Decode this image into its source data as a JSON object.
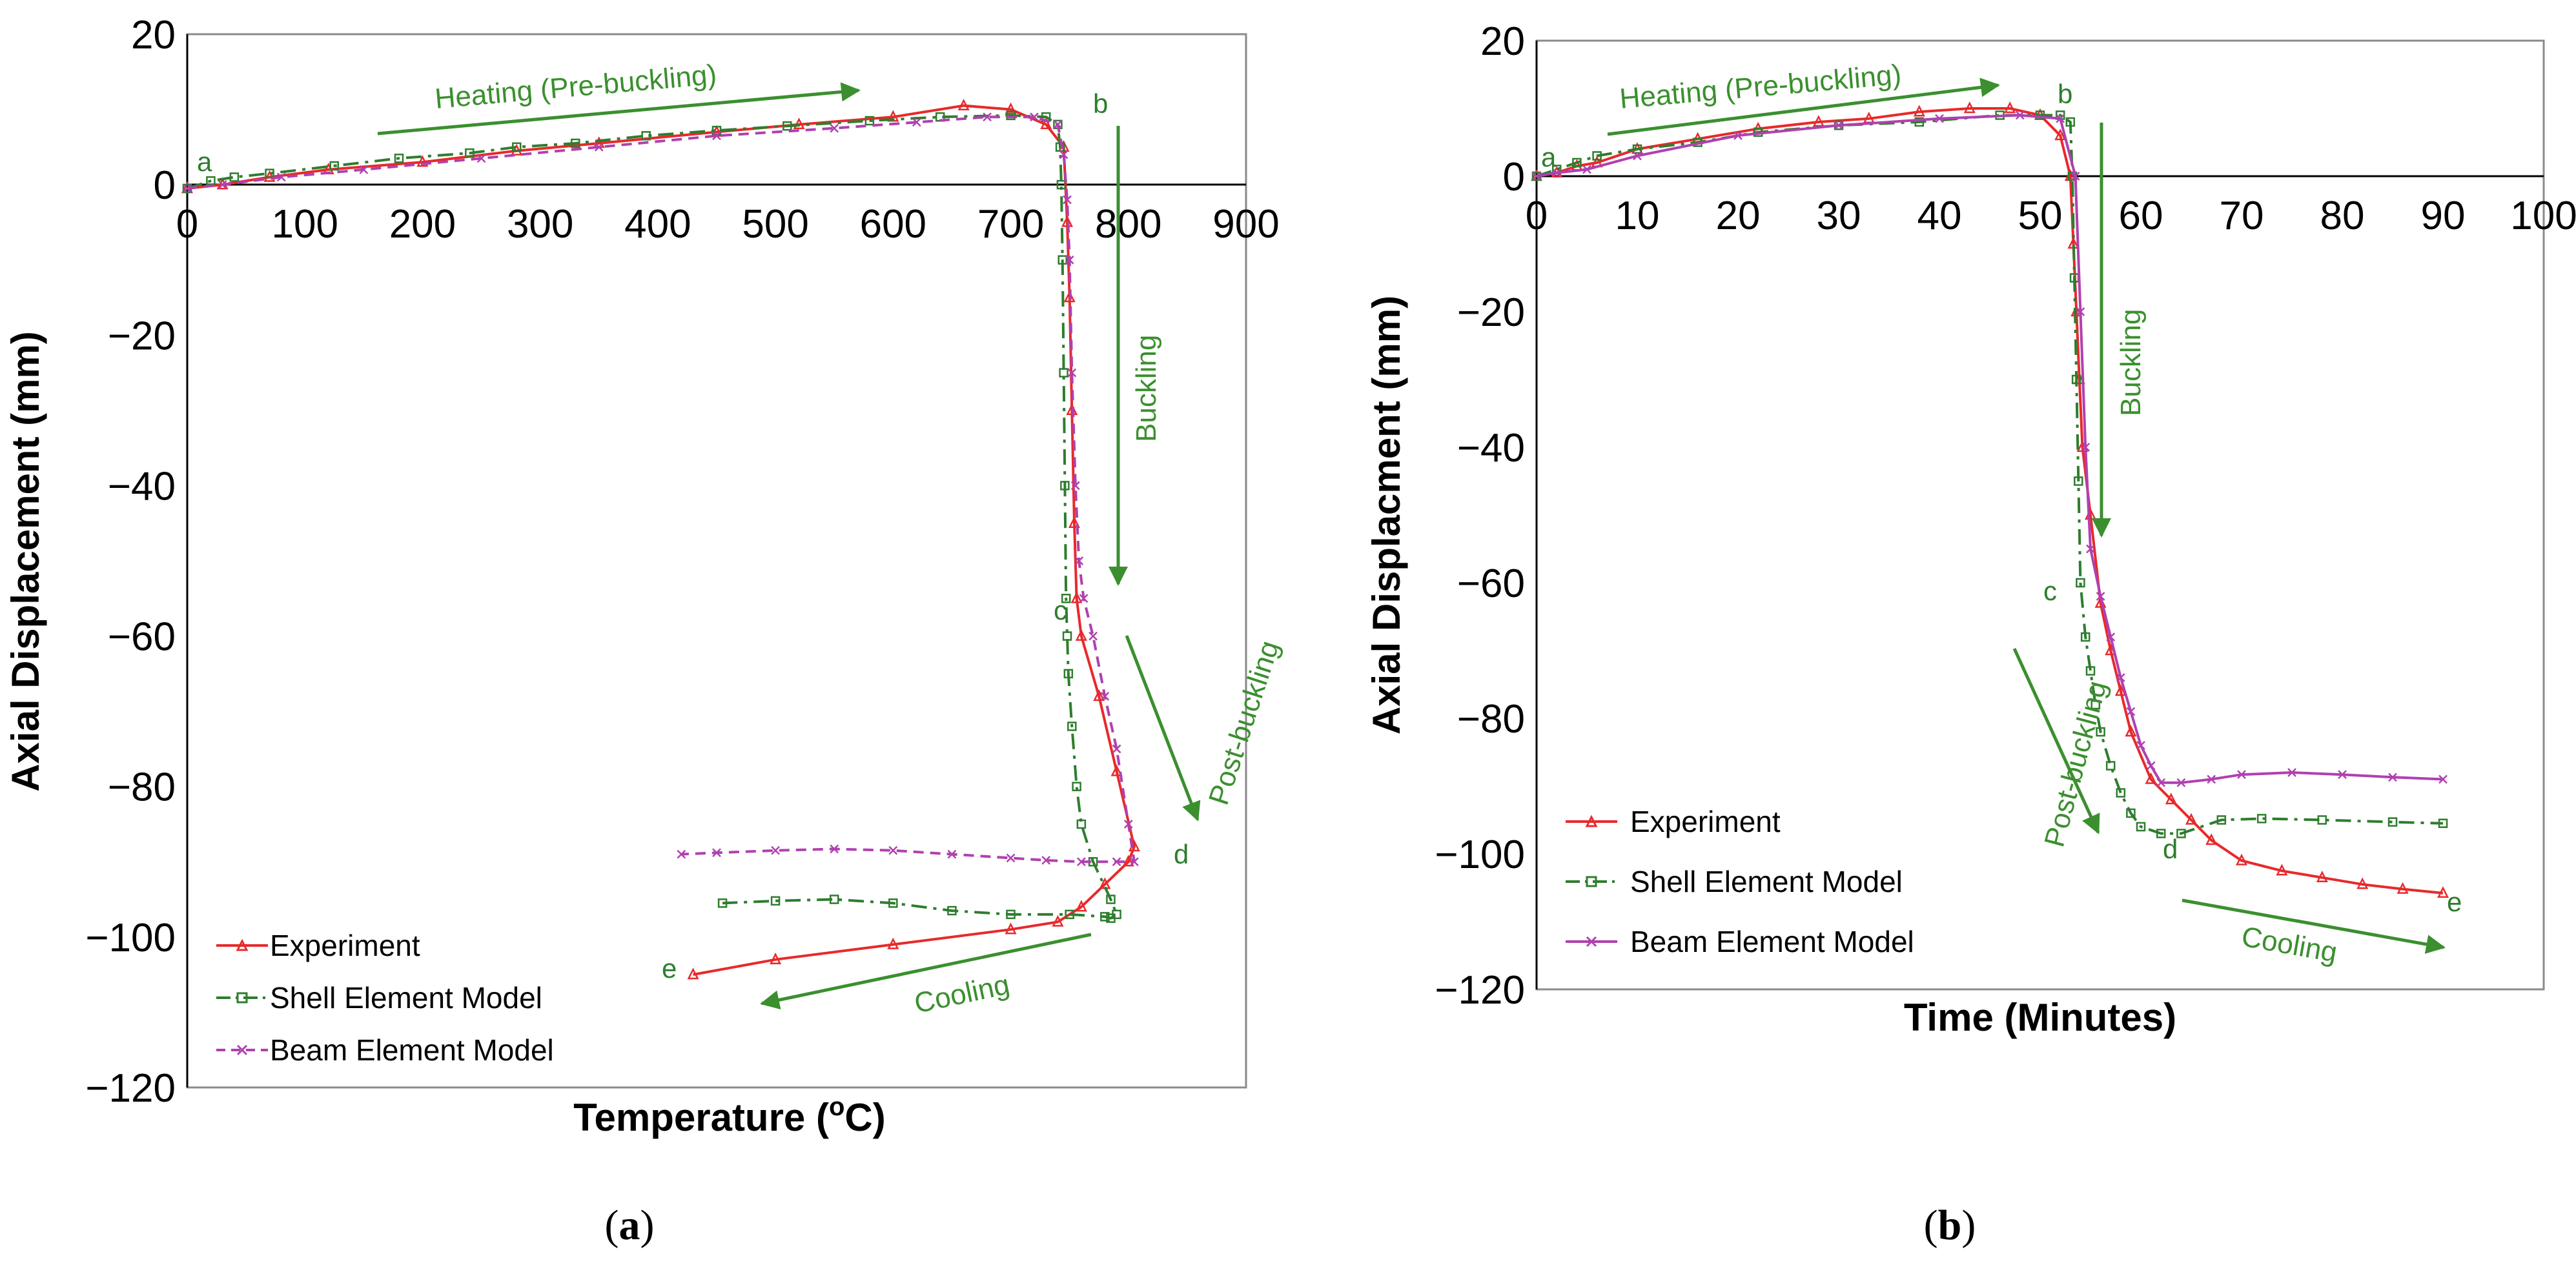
{
  "chart_data": [
    {
      "type": "line",
      "panel_label": "a",
      "xlabel_main": "Temperature (",
      "xlabel_sup": "o",
      "xlabel_end": "C)",
      "ylabel": "Axial Displacement (mm)",
      "xlim": [
        0,
        900
      ],
      "ylim": [
        -120,
        20
      ],
      "xticks": [
        "0",
        "100",
        "200",
        "300",
        "400",
        "500",
        "600",
        "700",
        "800",
        "900"
      ],
      "yticks": [
        "20",
        "0",
        "−20",
        "−40",
        "−60",
        "−80",
        "−100",
        "−120"
      ],
      "series": [
        {
          "name": "Experiment",
          "color": "#e8292b",
          "marker": "triangle",
          "dash": "solid",
          "x": [
            0,
            30,
            70,
            120,
            200,
            280,
            350,
            450,
            520,
            600,
            660,
            700,
            730,
            745,
            748,
            750,
            752,
            754,
            756,
            760,
            775,
            790,
            805,
            800,
            780,
            760,
            740,
            700,
            600,
            500,
            430
          ],
          "y": [
            -0.5,
            0,
            1,
            2,
            3,
            4.5,
            5.5,
            7,
            8,
            9,
            10.5,
            10,
            8,
            5,
            -5,
            -15,
            -30,
            -45,
            -55,
            -60,
            -68,
            -78,
            -88,
            -90,
            -93,
            -96,
            -98,
            -99,
            -101,
            -103,
            -105
          ]
        },
        {
          "name": "Shell Element Model",
          "color": "#2e7d2e",
          "marker": "square",
          "dash": "dashdot",
          "x": [
            0,
            20,
            40,
            70,
            125,
            180,
            240,
            280,
            330,
            390,
            450,
            510,
            580,
            640,
            700,
            730,
            740,
            742,
            743,
            744,
            745,
            746,
            747,
            748,
            749,
            752,
            756,
            760,
            770,
            785,
            790,
            785,
            780,
            750,
            700,
            650,
            600,
            550,
            500,
            455
          ],
          "y": [
            -0.5,
            0.5,
            1,
            1.5,
            2.5,
            3.5,
            4.2,
            5,
            5.5,
            6.5,
            7.2,
            7.8,
            8.5,
            9,
            9.2,
            9,
            8,
            5,
            0,
            -10,
            -25,
            -40,
            -55,
            -60,
            -65,
            -72,
            -80,
            -85,
            -90,
            -95,
            -97,
            -97.5,
            -97.3,
            -97,
            -97,
            -96.5,
            -95.5,
            -95,
            -95.2,
            -95.5
          ]
        },
        {
          "name": "Beam Element Model",
          "color": "#b040b0",
          "marker": "x",
          "dash": "dashed",
          "x": [
            0,
            30,
            80,
            150,
            250,
            350,
            450,
            550,
            620,
            680,
            720,
            740,
            745,
            748,
            750,
            752,
            755,
            758,
            762,
            770,
            780,
            790,
            800,
            805,
            790,
            760,
            730,
            700,
            650,
            600,
            550,
            500,
            450,
            420
          ],
          "y": [
            -0.5,
            0,
            1,
            2,
            3.5,
            5,
            6.5,
            7.5,
            8.3,
            9,
            9,
            8,
            4,
            -2,
            -10,
            -25,
            -40,
            -50,
            -55,
            -60,
            -68,
            -75,
            -85,
            -90,
            -90,
            -90,
            -89.8,
            -89.5,
            -89,
            -88.5,
            -88.3,
            -88.5,
            -88.8,
            -89
          ]
        }
      ],
      "point_labels": [
        "a",
        "b",
        "c",
        "d",
        "e"
      ],
      "annotations": {
        "heating": "Heating (Pre-buckling)",
        "buckling": "Buckling",
        "post_buckling": "Post-buckling",
        "cooling": "Cooling"
      }
    },
    {
      "type": "line",
      "panel_label": "b",
      "xlabel": "Time (Minutes)",
      "ylabel": "Axial Displacment (mm)",
      "xlim": [
        0,
        100
      ],
      "ylim": [
        -120,
        20
      ],
      "xticks": [
        "0",
        "10",
        "20",
        "30",
        "40",
        "50",
        "60",
        "70",
        "80",
        "90",
        "100"
      ],
      "yticks": [
        "20",
        "0",
        "−20",
        "−40",
        "−60",
        "−80",
        "−100",
        "−120"
      ],
      "series": [
        {
          "name": "Experiment",
          "color": "#e8292b",
          "marker": "triangle",
          "dash": "solid",
          "x": [
            0,
            2,
            4,
            6,
            10,
            16,
            22,
            28,
            33,
            38,
            43,
            47,
            50,
            52,
            53,
            53.3,
            53.6,
            53.9,
            54.2,
            55,
            56,
            57,
            58,
            59,
            61,
            63,
            65,
            67,
            70,
            74,
            78,
            82,
            86,
            90
          ],
          "y": [
            0,
            0.5,
            1.5,
            2,
            4,
            5.5,
            7,
            8,
            8.5,
            9.5,
            10,
            10,
            9,
            6,
            0,
            -10,
            -20,
            -30,
            -40,
            -50,
            -63,
            -70,
            -76,
            -82,
            -89,
            -92,
            -95,
            -98,
            -101,
            -102.5,
            -103.5,
            -104.5,
            -105.2,
            -105.8
          ]
        },
        {
          "name": "Shell Element Model",
          "color": "#2e7d2e",
          "marker": "square",
          "dash": "dashdot",
          "x": [
            0,
            2,
            4,
            6,
            10,
            16,
            22,
            30,
            38,
            46,
            50,
            52,
            53,
            53.2,
            53.4,
            53.6,
            53.8,
            54,
            54.5,
            55,
            55.5,
            56,
            57,
            58,
            59,
            60,
            62,
            64,
            68,
            72,
            78,
            85,
            90
          ],
          "y": [
            0,
            1,
            2,
            3,
            4,
            5,
            6.5,
            7.5,
            8,
            9,
            9,
            9,
            8,
            0,
            -15,
            -30,
            -45,
            -60,
            -68,
            -73,
            -78,
            -82,
            -87,
            -91,
            -94,
            -96,
            -97,
            -97,
            -95,
            -94.8,
            -95,
            -95.3,
            -95.5
          ]
        },
        {
          "name": "Beam Element Model",
          "color": "#b040b0",
          "marker": "x",
          "dash": "solid",
          "x": [
            0,
            2,
            5,
            10,
            20,
            30,
            40,
            48,
            52,
            53.5,
            54,
            54.5,
            55,
            56,
            57,
            58,
            59,
            60,
            61,
            62,
            64,
            67,
            70,
            75,
            80,
            85,
            90
          ],
          "y": [
            0,
            0.5,
            1,
            3,
            6,
            7.5,
            8.5,
            9,
            8.5,
            0,
            -20,
            -40,
            -55,
            -62,
            -68,
            -74,
            -79,
            -84,
            -87,
            -89.5,
            -89.5,
            -89,
            -88.3,
            -88,
            -88.3,
            -88.7,
            -89
          ]
        }
      ],
      "point_labels": [
        "a",
        "b",
        "c",
        "d",
        "e"
      ],
      "annotations": {
        "heating": "Heating (Pre-buckling)",
        "buckling": "Buckling",
        "post_buckling": "Post-buckling",
        "cooling": "Cooling"
      }
    }
  ]
}
